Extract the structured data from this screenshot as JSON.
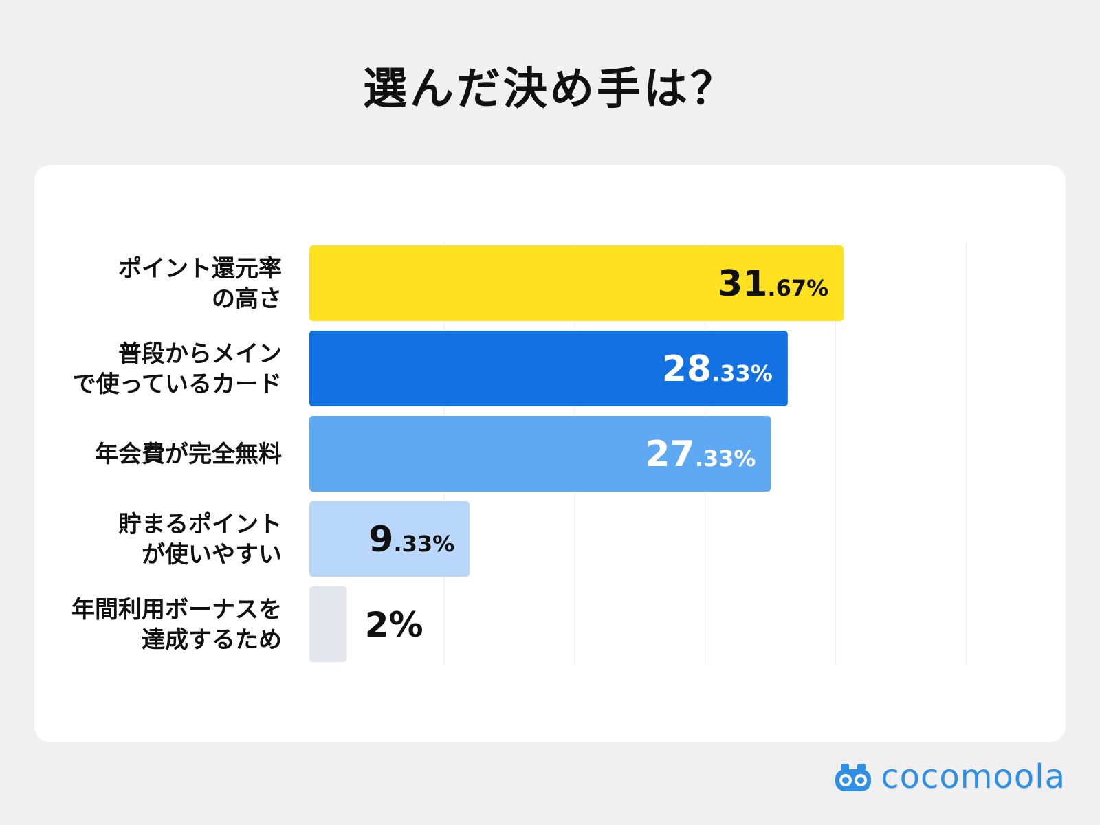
{
  "page": {
    "title": "選んだ決め手は？"
  },
  "brand": {
    "name": "cocomoola",
    "icon": "binoculars-icon",
    "color": "#2e8fe6"
  },
  "chart_data": {
    "type": "bar",
    "orientation": "horizontal",
    "categories": [
      [
        "ポイント還元率",
        "の高さ"
      ],
      [
        "普段からメイン",
        "で使っているカード"
      ],
      [
        "年会費が完全無料"
      ],
      [
        "貯まるポイント",
        "が使いやすい"
      ],
      [
        "年間利用ボーナスを",
        "達成するため"
      ]
    ],
    "values": [
      31.67,
      28.33,
      27.33,
      9.33,
      2
    ],
    "value_labels": [
      {
        "int": "31",
        "dec": ".67%"
      },
      {
        "int": "28",
        "dec": ".33%"
      },
      {
        "int": "27",
        "dec": ".33%"
      },
      {
        "int": "9",
        "dec": ".33%"
      },
      {
        "int": "2%",
        "dec": ""
      }
    ],
    "bar_colors": [
      "#ffe11f",
      "#1372e3",
      "#5ea9f2",
      "#b8d7fb",
      "#e3e7ed"
    ],
    "label_colors": [
      "#111111",
      "#ffffff",
      "#ffffff",
      "#111111",
      "#111111"
    ],
    "label_outside": [
      false,
      false,
      false,
      false,
      true
    ],
    "xlim": [
      0,
      40
    ],
    "grid": true,
    "legend": "none"
  }
}
